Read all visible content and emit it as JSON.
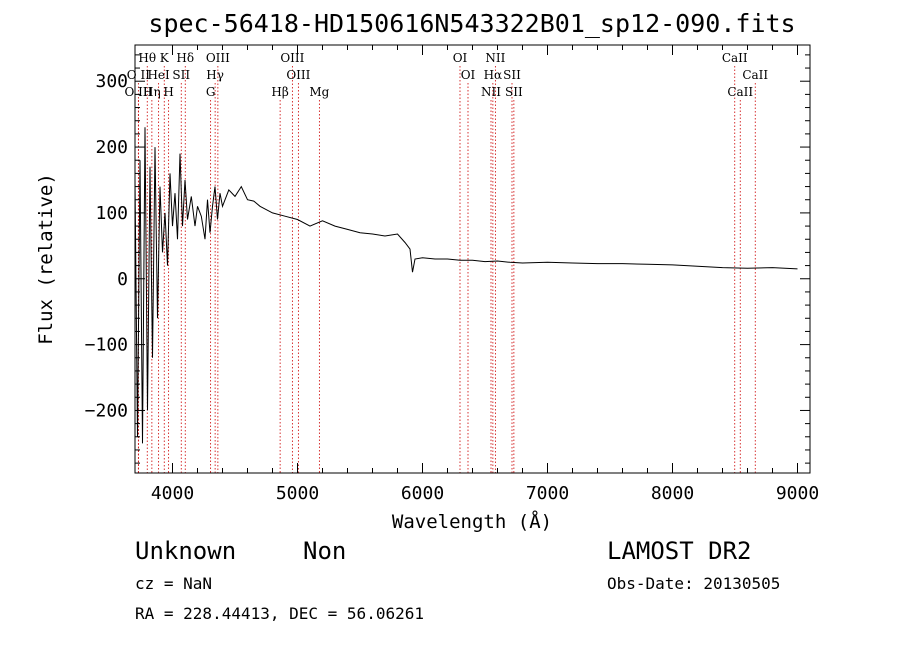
{
  "chart_data": {
    "type": "line",
    "title": "spec-56418-HD150616N543322B01_sp12-090.fits",
    "xlabel": "Wavelength (Å)",
    "ylabel": "Flux (relative)",
    "xlim": [
      3700,
      9100
    ],
    "ylim": [
      -295,
      355
    ],
    "xticks": [
      4000,
      5000,
      6000,
      7000,
      8000,
      9000
    ],
    "yticks": [
      -200,
      -100,
      0,
      100,
      200,
      300
    ],
    "xtick_labels": [
      "4000",
      "5000",
      "6000",
      "7000",
      "8000",
      "9000"
    ],
    "ytick_labels": [
      "−200",
      "−100",
      "0",
      "100",
      "200",
      "300"
    ],
    "grid": false,
    "series": [
      {
        "x": [
          3700,
          3720,
          3740,
          3760,
          3780,
          3800,
          3820,
          3840,
          3860,
          3880,
          3900,
          3920,
          3940,
          3960,
          3980,
          4000,
          4020,
          4040,
          4060,
          4080,
          4100,
          4120,
          4150,
          4180,
          4200,
          4230,
          4260,
          4280,
          4300,
          4320,
          4340,
          4360,
          4380,
          4400,
          4450,
          4500,
          4550,
          4600,
          4650,
          4700,
          4800,
          4900,
          5000,
          5100,
          5200,
          5300,
          5400,
          5500,
          5600,
          5700,
          5800,
          5860,
          5900,
          5920,
          5940,
          6000,
          6100,
          6200,
          6300,
          6400,
          6500,
          6600,
          6700,
          6800,
          7000,
          7200,
          7400,
          7600,
          7800,
          8000,
          8200,
          8400,
          8600,
          8800,
          9000
        ],
        "values": [
          150,
          -240,
          180,
          -250,
          230,
          -200,
          170,
          -120,
          200,
          -60,
          140,
          40,
          100,
          20,
          160,
          80,
          130,
          60,
          190,
          80,
          150,
          90,
          125,
          80,
          110,
          95,
          60,
          120,
          70,
          110,
          140,
          90,
          130,
          110,
          135,
          125,
          140,
          120,
          118,
          110,
          100,
          95,
          90,
          80,
          88,
          80,
          75,
          70,
          68,
          65,
          68,
          55,
          45,
          10,
          30,
          32,
          30,
          30,
          28,
          28,
          26,
          27,
          25,
          24,
          25,
          24,
          23,
          23,
          22,
          21,
          19,
          17,
          16,
          17,
          15
        ]
      }
    ],
    "spectral_lines": [
      {
        "label": "O II",
        "x": 3727,
        "row": 1
      },
      {
        "label": "O III",
        "x": 3727,
        "row": 2
      },
      {
        "label": "Hθ",
        "x": 3798,
        "row": 0
      },
      {
        "label": "HeI",
        "x": 3889,
        "row": 1
      },
      {
        "label": "Hη",
        "x": 3835,
        "row": 2
      },
      {
        "label": "K",
        "x": 3934,
        "row": 0
      },
      {
        "label": "SII",
        "x": 4070,
        "row": 1
      },
      {
        "label": "H",
        "x": 3969,
        "row": 2
      },
      {
        "label": "Hδ",
        "x": 4102,
        "row": 0
      },
      {
        "label": "OIII",
        "x": 4363,
        "row": 0
      },
      {
        "label": "Hγ",
        "x": 4341,
        "row": 1
      },
      {
        "label": "G",
        "x": 4305,
        "row": 2
      },
      {
        "label": "Hβ",
        "x": 4861,
        "row": 2
      },
      {
        "label": "OIII",
        "x": 4959,
        "row": 0
      },
      {
        "label": "OIII",
        "x": 5007,
        "row": 1
      },
      {
        "label": "Mg",
        "x": 5175,
        "row": 2
      },
      {
        "label": "OI",
        "x": 6300,
        "row": 0
      },
      {
        "label": "OI",
        "x": 6364,
        "row": 1
      },
      {
        "label": "NII",
        "x": 6548,
        "row": 2
      },
      {
        "label": "NII",
        "x": 6583,
        "row": 0
      },
      {
        "label": "Hα",
        "x": 6563,
        "row": 1
      },
      {
        "label": "SII",
        "x": 6716,
        "row": 1
      },
      {
        "label": "SII",
        "x": 6731,
        "row": 2
      },
      {
        "label": "CaII",
        "x": 8498,
        "row": 0
      },
      {
        "label": "CaII",
        "x": 8542,
        "row": 2
      },
      {
        "label": "CaII",
        "x": 8662,
        "row": 1
      }
    ]
  },
  "info": {
    "class": "Unknown",
    "subclass": "Non",
    "survey": "LAMOST DR2",
    "cz": "cz = NaN",
    "obs_date": "Obs-Date: 20130505",
    "coords": "RA = 228.44413, DEC =  56.06261"
  },
  "colors": {
    "spectrum": "#000000",
    "line_markers": "#cc0000"
  }
}
